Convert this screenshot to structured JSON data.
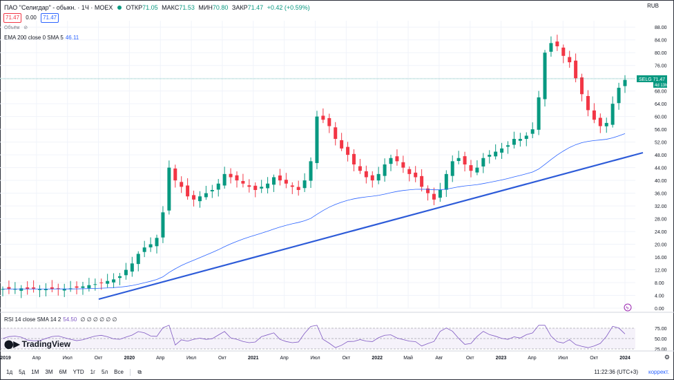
{
  "header": {
    "symbol": "ПАО \"Селигдар\" - обыкн. · 1Ч · MOEX",
    "open_label": "ОТКР",
    "open_value": "71.05",
    "high_label": "МАКС",
    "high_value": "71.53",
    "low_label": "МИН",
    "low_value": "70.80",
    "close_label": "ЗАКР",
    "close_value": "71.47",
    "change": "+0.42 (+0.59%)"
  },
  "order": {
    "sell_price": "71.47",
    "spread": "0.00",
    "buy_price": "71.47"
  },
  "volume_label": "Объём",
  "ema_label": "EMA 200 close 0 SMA 5",
  "ema_value": "46.11",
  "rsi_label": "RSI 14 close SMA 14 2",
  "rsi_value": "54.50",
  "rsi_zeros": "∅ ∅ ∅ ∅ ∅ ∅",
  "currency": "RUB",
  "logo_text": "TradingView",
  "price_tag": {
    "ticker": "SELG",
    "price": "71.47",
    "countdown": "4d 13h"
  },
  "bottom": {
    "timeframes": [
      "1д",
      "5д",
      "1М",
      "3М",
      "6М",
      "YTD",
      "1г",
      "5л",
      "Все"
    ],
    "clock": "11:22:36 (UTC+3)",
    "correction": "коррект."
  },
  "colors": {
    "up": "#089981",
    "down": "#f23645",
    "ema": "#2962ff",
    "trendline": "#2d5bd8",
    "rsi": "#7e57c2"
  },
  "chart_data": {
    "type": "candlestick",
    "y_ticks": [
      "0.00",
      "4.00",
      "8.00",
      "12.00",
      "16.00",
      "20.00",
      "24.00",
      "28.00",
      "32.00",
      "36.00",
      "40.00",
      "44.00",
      "48.00",
      "52.00",
      "56.00",
      "60.00",
      "64.00",
      "68.00",
      "72.00",
      "76.00",
      "80.00",
      "84.00",
      "88.00"
    ],
    "x_ticks": [
      "2019",
      "Апр",
      "Июл",
      "Окт",
      "2020",
      "Апр",
      "Июл",
      "Окт",
      "2021",
      "Апр",
      "Июл",
      "Окт",
      "2022",
      "Май",
      "Авг",
      "Окт",
      "2023",
      "Апр",
      "Июл",
      "Окт",
      "2024"
    ],
    "ylim": [
      0,
      90
    ],
    "closes": [
      6,
      6,
      6,
      6.2,
      6,
      6.1,
      6,
      6,
      6,
      6.1,
      6,
      6.2,
      6.4,
      6.8,
      7.2,
      7.5,
      8,
      8.5,
      9,
      10,
      12,
      14,
      17,
      19,
      20,
      22,
      30,
      44,
      40,
      38,
      35,
      34,
      35,
      36,
      37,
      39,
      42,
      41,
      40,
      39,
      38,
      37,
      38,
      39,
      41,
      40,
      39,
      38,
      37,
      40,
      46,
      60,
      59,
      57,
      53,
      50,
      48,
      45,
      43,
      41,
      40,
      42,
      45,
      47,
      46,
      44,
      42,
      41,
      38,
      36,
      34,
      37,
      42,
      46,
      47,
      45,
      43,
      44,
      47,
      48,
      49,
      50,
      51,
      53,
      53,
      54,
      56,
      66,
      80,
      83,
      82,
      79,
      77,
      72,
      67,
      62,
      59,
      57,
      58,
      64,
      69,
      71.47
    ],
    "rsi_overbought": 70,
    "rsi_mid": 50,
    "rsi_oversold": 30,
    "rsi_ticks": [
      "75.00",
      "50.00",
      "25.00"
    ]
  }
}
